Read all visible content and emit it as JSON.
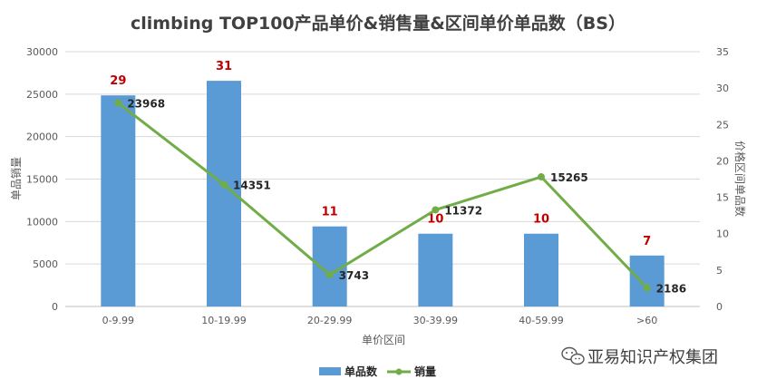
{
  "chart_data": {
    "type": "bar",
    "title": "climbing TOP100产品单价&销售量&区间单价单品数（BS）",
    "categories": [
      "0-9.99",
      "10-19.99",
      "20-29.99",
      "30-39.99",
      "40-59.99",
      ">60"
    ],
    "xlabel": "单价区间",
    "ylabel_left": "单品销量",
    "ylabel_right": "价格区间单品数",
    "ylim_left": [
      0,
      30000
    ],
    "ylim_right": [
      0,
      35
    ],
    "yticks_left": [
      "0",
      "5000",
      "10000",
      "15000",
      "20000",
      "25000",
      "30000"
    ],
    "yticks_right": [
      "0",
      "5",
      "10",
      "15",
      "20",
      "25",
      "30",
      "35"
    ],
    "series": [
      {
        "name": "单品数",
        "type": "bar",
        "axis": "right",
        "color": "#5B9BD5",
        "values": [
          29,
          31,
          11,
          10,
          10,
          7
        ],
        "labels": [
          "29",
          "31",
          "11",
          "10",
          "10",
          "7"
        ]
      },
      {
        "name": "销量",
        "type": "line",
        "axis": "left",
        "color": "#70AD47",
        "values": [
          23968,
          14351,
          3743,
          11372,
          15265,
          2186
        ],
        "labels": [
          "23968",
          "14351",
          "3743",
          "11372",
          "15265",
          "2186"
        ]
      }
    ],
    "grid": true,
    "legend": "bottom"
  },
  "watermark": {
    "text": "亚易知识产权集团",
    "icon": "wechat-icon"
  }
}
